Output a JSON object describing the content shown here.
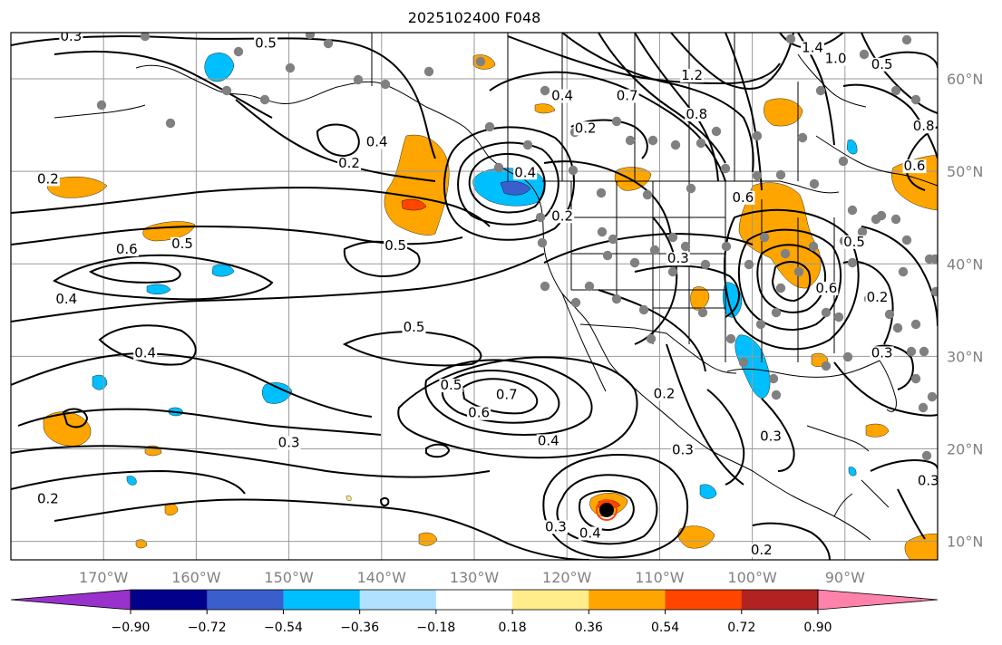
{
  "title": "2025102400 F048",
  "map": {
    "lon_range": [
      -180,
      -80
    ],
    "lat_range": [
      8,
      65
    ],
    "lat_ticks": [
      {
        "value": 10,
        "label": "10°N"
      },
      {
        "value": 20,
        "label": "20°N"
      },
      {
        "value": 30,
        "label": "30°N"
      },
      {
        "value": 40,
        "label": "40°N"
      },
      {
        "value": 50,
        "label": "50°N"
      },
      {
        "value": 60,
        "label": "60°N"
      }
    ],
    "lon_ticks": [
      {
        "value": -170,
        "label": "170°W"
      },
      {
        "value": -160,
        "label": "160°W"
      },
      {
        "value": -150,
        "label": "150°W"
      },
      {
        "value": -140,
        "label": "140°W"
      },
      {
        "value": -130,
        "label": "130°W"
      },
      {
        "value": -120,
        "label": "120°W"
      },
      {
        "value": -110,
        "label": "110°W"
      },
      {
        "value": -100,
        "label": "100°W"
      },
      {
        "value": -90,
        "label": "90°W"
      }
    ],
    "grid": true,
    "contour_labels": [
      {
        "text": "0.3",
        "lon": -173.5,
        "lat": 64.2
      },
      {
        "text": "0.5",
        "lon": -152.5,
        "lat": 63.5
      },
      {
        "text": "0.4",
        "lon": -140.5,
        "lat": 52.8
      },
      {
        "text": "0.2",
        "lon": -143.5,
        "lat": 50.5
      },
      {
        "text": "0.2",
        "lon": -176,
        "lat": 48.8
      },
      {
        "text": "0.6",
        "lon": -167.5,
        "lat": 41.2
      },
      {
        "text": "0.5",
        "lon": -161.5,
        "lat": 41.8
      },
      {
        "text": "0.5",
        "lon": -138.5,
        "lat": 41.6
      },
      {
        "text": "0.4",
        "lon": -174,
        "lat": 35.8
      },
      {
        "text": "0.4",
        "lon": -165.5,
        "lat": 30.0
      },
      {
        "text": "0.5",
        "lon": -136.5,
        "lat": 32.8
      },
      {
        "text": "0.5",
        "lon": -132.5,
        "lat": 26.5
      },
      {
        "text": "0.7",
        "lon": -126.5,
        "lat": 25.5
      },
      {
        "text": "0.6",
        "lon": -129.5,
        "lat": 23.5
      },
      {
        "text": "0.4",
        "lon": -122,
        "lat": 20.5
      },
      {
        "text": "0.3",
        "lon": -150,
        "lat": 20.3
      },
      {
        "text": "0.2",
        "lon": -176,
        "lat": 14.2
      },
      {
        "text": "0.3",
        "lon": -121.2,
        "lat": 11.2
      },
      {
        "text": "0.4",
        "lon": -117.5,
        "lat": 10.5
      },
      {
        "text": "0.2",
        "lon": -99,
        "lat": 8.7
      },
      {
        "text": "0.4",
        "lon": -120.5,
        "lat": 57.8
      },
      {
        "text": "0.2",
        "lon": -118,
        "lat": 54.3
      },
      {
        "text": "0.7",
        "lon": -113.5,
        "lat": 57.8
      },
      {
        "text": "1.2",
        "lon": -106.5,
        "lat": 60.0
      },
      {
        "text": "1.4",
        "lon": -93.5,
        "lat": 63.0
      },
      {
        "text": "1.0",
        "lon": -91,
        "lat": 61.8
      },
      {
        "text": "0.5",
        "lon": -86,
        "lat": 61.2
      },
      {
        "text": "0.8",
        "lon": -106,
        "lat": 55.8
      },
      {
        "text": "0.6",
        "lon": -101,
        "lat": 46.8
      },
      {
        "text": "0.8",
        "lon": -81.5,
        "lat": 54.5
      },
      {
        "text": "0.6",
        "lon": -82.5,
        "lat": 50.2
      },
      {
        "text": "0.4",
        "lon": -124.5,
        "lat": 49.5
      },
      {
        "text": "0.2",
        "lon": -120.5,
        "lat": 44.8
      },
      {
        "text": "0.3",
        "lon": -108,
        "lat": 40.2
      },
      {
        "text": "0.5",
        "lon": -89,
        "lat": 42.0
      },
      {
        "text": "0.6",
        "lon": -92,
        "lat": 37.0
      },
      {
        "text": "0.2",
        "lon": -86.5,
        "lat": 36.0
      },
      {
        "text": "0.3",
        "lon": -86,
        "lat": 30.0
      },
      {
        "text": "0.2",
        "lon": -109.5,
        "lat": 25.6
      },
      {
        "text": "0.3",
        "lon": -107.5,
        "lat": 19.5
      },
      {
        "text": "0.3",
        "lon": -98,
        "lat": 21.0
      },
      {
        "text": "0.3",
        "lon": -81,
        "lat": 16.2
      }
    ],
    "point_marker_color": "#808080",
    "contour_color": "#000000"
  },
  "colorbar": {
    "colors": [
      "#9932cc",
      "#00008b",
      "#3a5fcd",
      "#00bfff",
      "#b0e2ff",
      "#ffffff",
      "#ffec8b",
      "#ffa500",
      "#ff4500",
      "#b22222",
      "#ff82ab"
    ],
    "ticks": [
      "−0.90",
      "−0.72",
      "−0.54",
      "−0.36",
      "−0.18",
      "0.18",
      "0.36",
      "0.54",
      "0.72",
      "0.90"
    ]
  }
}
